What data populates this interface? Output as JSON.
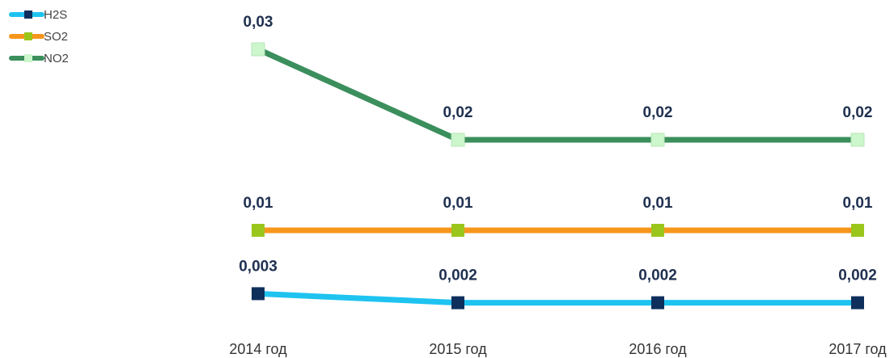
{
  "chart_data": {
    "type": "line",
    "categories": [
      "2014 год",
      "2015 год",
      "2016 год",
      "2017 год"
    ],
    "series": [
      {
        "name": "H2S",
        "color": "#1ec3f0",
        "marker_color": "#0e2f5c",
        "values": [
          0.003,
          0.002,
          0.002,
          0.002
        ],
        "value_labels": [
          "0,003",
          "0,002",
          "0,002",
          "0,002"
        ]
      },
      {
        "name": "SO2",
        "color": "#f7961c",
        "marker_color": "#9ac61c",
        "values": [
          0.01,
          0.01,
          0.01,
          0.01
        ],
        "value_labels": [
          "0,01",
          "0,01",
          "0,01",
          "0,01"
        ]
      },
      {
        "name": "NO2",
        "color": "#3b8f5c",
        "marker_color": "#ccf6cc",
        "values": [
          0.03,
          0.02,
          0.02,
          0.02
        ],
        "value_labels": [
          "0,03",
          "0,02",
          "0,02",
          "0,02"
        ]
      }
    ],
    "ylim": [
      0,
      0.03
    ],
    "legend": "top-left"
  }
}
